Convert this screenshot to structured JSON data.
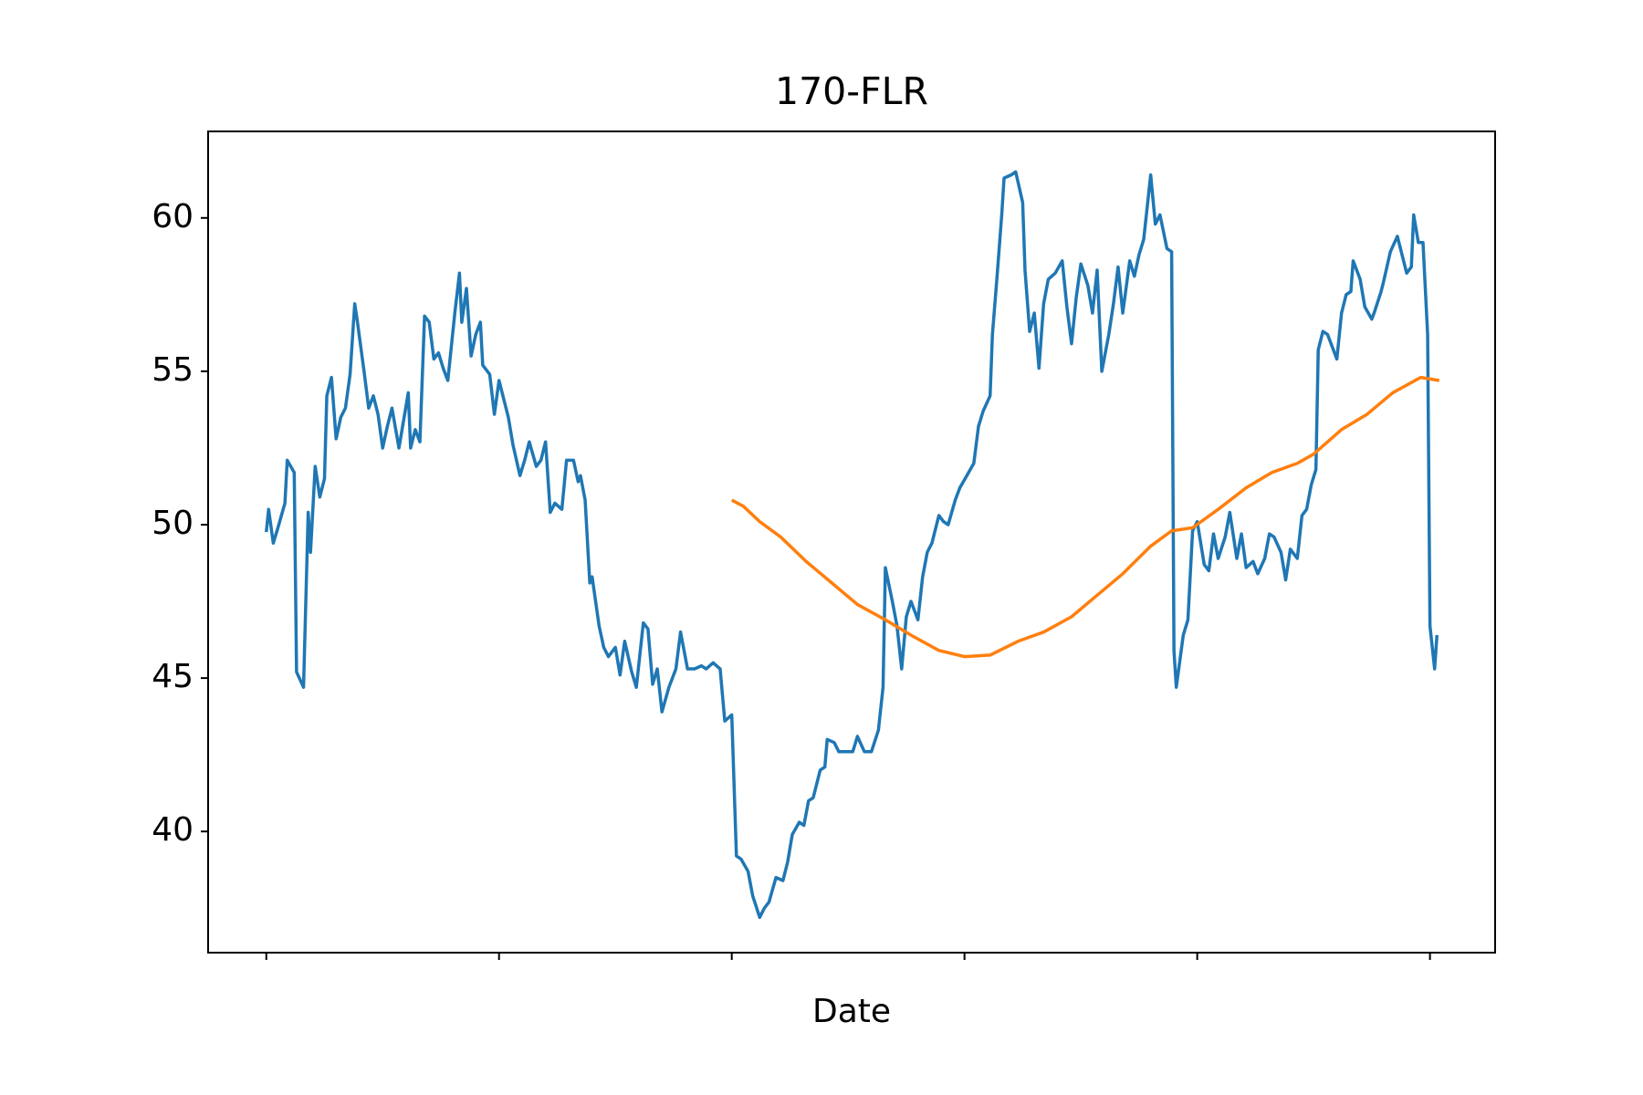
{
  "chart_data": {
    "type": "line",
    "title": "170-FLR",
    "x_label": "Date",
    "xlim": [
      -25,
      528
    ],
    "ylim": [
      36.05,
      62.82
    ],
    "xticks": [
      0,
      100,
      200,
      300,
      400,
      500
    ],
    "yticks": [
      40,
      45,
      50,
      55,
      60
    ],
    "grid": false,
    "series": [
      {
        "color": "#1f77b4",
        "x": [
          0,
          1,
          3,
          5,
          8,
          9,
          12,
          13,
          16,
          18,
          19,
          21,
          23,
          25,
          26,
          28,
          30,
          32,
          34,
          36,
          38,
          39,
          42,
          44,
          46,
          48,
          50,
          52,
          54,
          57,
          59,
          61,
          62,
          64,
          66,
          68,
          70,
          72,
          74,
          76,
          78,
          81,
          83,
          84,
          86,
          88,
          90,
          92,
          93,
          96,
          98,
          100,
          102,
          104,
          106,
          109,
          111,
          113,
          116,
          118,
          120,
          122,
          124,
          127,
          129,
          132,
          134,
          135,
          137,
          139,
          140,
          143,
          145,
          147,
          150,
          152,
          154,
          157,
          159,
          162,
          164,
          166,
          168,
          170,
          173,
          176,
          178,
          181,
          184,
          187,
          189,
          192,
          195,
          197,
          200,
          202,
          204,
          207,
          209,
          212,
          214,
          216,
          219,
          222,
          224,
          226,
          229,
          231,
          233,
          235,
          238,
          240,
          241,
          244,
          246,
          249,
          252,
          254,
          257,
          260,
          263,
          265,
          266,
          269,
          271,
          273,
          275,
          277,
          280,
          282,
          284,
          286,
          289,
          291,
          293,
          296,
          298,
          301,
          304,
          306,
          308,
          311,
          312,
          314,
          316,
          317,
          320,
          322,
          325,
          326,
          328,
          330,
          332,
          334,
          336,
          339,
          342,
          344,
          346,
          348,
          350,
          353,
          355,
          357,
          359,
          362,
          364,
          366,
          368,
          371,
          373,
          375,
          377,
          380,
          382,
          384,
          387,
          389,
          390,
          391,
          394,
          396,
          398,
          400,
          403,
          405,
          407,
          409,
          412,
          414,
          417,
          419,
          421,
          424,
          426,
          429,
          431,
          433,
          436,
          438,
          440,
          443,
          445,
          447,
          449,
          451,
          452,
          454,
          456,
          458,
          460,
          462,
          464,
          466,
          467,
          470,
          472,
          475,
          476,
          479,
          480,
          483,
          486,
          488,
          490,
          492,
          493,
          495,
          497,
          499,
          500,
          502,
          503
        ],
        "values": [
          49.76,
          50.5,
          49.4,
          49.9,
          50.7,
          52.1,
          51.7,
          45.2,
          44.7,
          50.4,
          49.1,
          51.9,
          50.9,
          51.5,
          54.2,
          54.8,
          52.8,
          53.5,
          53.8,
          54.9,
          57.2,
          56.7,
          55.0,
          53.8,
          54.2,
          53.6,
          52.5,
          53.2,
          53.8,
          52.5,
          53.4,
          54.3,
          52.5,
          53.1,
          52.7,
          56.8,
          56.6,
          55.4,
          55.6,
          55.1,
          54.7,
          56.9,
          58.2,
          56.6,
          57.7,
          55.5,
          56.2,
          56.6,
          55.2,
          54.9,
          53.6,
          54.7,
          54.1,
          53.5,
          52.6,
          51.6,
          52.1,
          52.7,
          51.9,
          52.1,
          52.7,
          50.4,
          50.7,
          50.5,
          52.1,
          52.1,
          51.4,
          51.6,
          50.8,
          48.1,
          48.3,
          46.7,
          46.0,
          45.7,
          46.0,
          45.1,
          46.2,
          45.2,
          44.7,
          46.8,
          46.6,
          44.8,
          45.3,
          43.9,
          44.7,
          45.3,
          46.5,
          45.3,
          45.3,
          45.4,
          45.3,
          45.5,
          45.3,
          43.6,
          43.8,
          39.2,
          39.1,
          38.7,
          37.9,
          37.2,
          37.5,
          37.7,
          38.5,
          38.4,
          39.0,
          39.9,
          40.3,
          40.2,
          41.0,
          41.1,
          42.0,
          42.1,
          43.0,
          42.9,
          42.6,
          42.6,
          42.6,
          43.1,
          42.6,
          42.6,
          43.3,
          44.7,
          48.6,
          47.5,
          46.7,
          45.3,
          47.0,
          47.5,
          46.9,
          48.3,
          49.1,
          49.4,
          50.3,
          50.1,
          50.0,
          50.8,
          51.2,
          51.6,
          52.0,
          53.2,
          53.7,
          54.2,
          56.2,
          58.1,
          60.1,
          61.3,
          61.4,
          61.5,
          60.5,
          58.3,
          56.3,
          56.9,
          55.1,
          57.2,
          58.0,
          58.2,
          58.6,
          57.1,
          55.9,
          57.4,
          58.5,
          57.8,
          56.9,
          58.3,
          55.0,
          56.2,
          57.2,
          58.4,
          56.9,
          58.6,
          58.1,
          58.8,
          59.3,
          61.4,
          59.8,
          60.1,
          59.0,
          58.9,
          45.9,
          44.7,
          46.4,
          46.9,
          49.8,
          50.1,
          48.7,
          48.5,
          49.7,
          48.9,
          49.6,
          50.4,
          48.9,
          49.7,
          48.6,
          48.8,
          48.4,
          48.9,
          49.7,
          49.6,
          49.1,
          48.2,
          49.2,
          48.9,
          50.3,
          50.5,
          51.3,
          51.8,
          55.7,
          56.3,
          56.2,
          55.8,
          55.4,
          56.9,
          57.5,
          57.6,
          58.6,
          58.0,
          57.1,
          56.7,
          56.9,
          57.6,
          57.9,
          58.9,
          59.4,
          58.8,
          58.2,
          58.4,
          60.1,
          59.2,
          59.2,
          56.2,
          46.7,
          45.3,
          46.4
        ]
      },
      {
        "color": "#ff7f0e",
        "x": [
          200,
          205,
          212,
          221,
          232,
          243,
          254,
          266,
          277,
          289,
          300,
          311,
          323,
          334,
          346,
          357,
          368,
          380,
          389,
          398,
          409,
          421,
          432,
          443,
          450,
          462,
          473,
          484,
          496,
          504
        ],
        "values": [
          50.8,
          50.6,
          50.1,
          49.6,
          48.8,
          48.1,
          47.4,
          46.9,
          46.4,
          45.9,
          45.7,
          45.75,
          46.2,
          46.5,
          47.0,
          47.7,
          48.4,
          49.3,
          49.8,
          49.9,
          50.5,
          51.2,
          51.7,
          52.0,
          52.3,
          53.1,
          53.6,
          54.3,
          54.8,
          54.7
        ]
      }
    ]
  }
}
